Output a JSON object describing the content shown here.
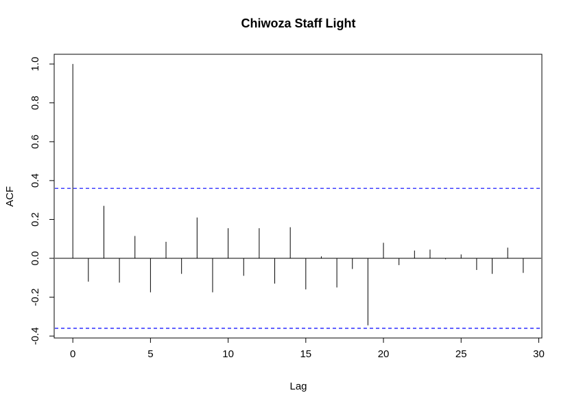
{
  "chart_data": {
    "type": "bar",
    "title": "Chiwoza Staff Light",
    "xlabel": "Lag",
    "ylabel": "ACF",
    "xlim": [
      -1.2,
      30.2
    ],
    "ylim": [
      -0.41,
      1.05
    ],
    "x_ticks": [
      0,
      5,
      10,
      15,
      20,
      25,
      30
    ],
    "x_tick_labels": [
      "0",
      "5",
      "10",
      "15",
      "20",
      "25",
      "30"
    ],
    "y_ticks": [
      -0.4,
      -0.2,
      0.0,
      0.2,
      0.4,
      0.6,
      0.8,
      1.0
    ],
    "y_tick_labels": [
      "-0.4",
      "-0.2",
      "0.0",
      "0.2",
      "0.4",
      "0.6",
      "0.8",
      "1.0"
    ],
    "lags": [
      0,
      1,
      2,
      3,
      4,
      5,
      6,
      7,
      8,
      9,
      10,
      11,
      12,
      13,
      14,
      15,
      16,
      17,
      18,
      19,
      20,
      21,
      22,
      23,
      24,
      25,
      26,
      27,
      28,
      29
    ],
    "acf": [
      1.0,
      -0.12,
      0.27,
      -0.125,
      0.115,
      -0.175,
      0.085,
      -0.08,
      0.21,
      -0.175,
      0.155,
      -0.09,
      0.155,
      -0.13,
      0.16,
      -0.16,
      0.01,
      -0.15,
      -0.055,
      -0.345,
      0.08,
      -0.035,
      0.04,
      0.045,
      -0.005,
      0.02,
      -0.06,
      -0.08,
      0.055,
      -0.075
    ],
    "confidence_bound": 0.36,
    "bound_color": "#0000ff",
    "line_color": "#000000"
  }
}
